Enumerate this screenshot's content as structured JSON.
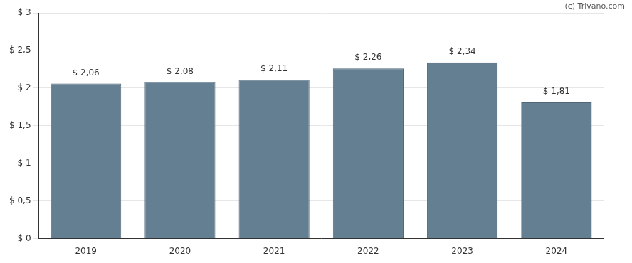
{
  "chart_data": {
    "type": "bar",
    "annotations": [
      "(c) Trivano.com"
    ],
    "categories": [
      "2019",
      "2020",
      "2021",
      "2022",
      "2023",
      "2024"
    ],
    "values": [
      2.06,
      2.08,
      2.11,
      2.26,
      2.34,
      1.81
    ],
    "value_labels": [
      "$ 2,06",
      "$ 2,08",
      "$ 2,11",
      "$ 2,26",
      "$ 2,34",
      "$ 1,81"
    ],
    "data_labels": true,
    "color": "#647f92",
    "ylim": [
      0,
      3
    ],
    "yticks": [
      {
        "value": 0,
        "label": "$ 0"
      },
      {
        "value": 0.5,
        "label": "$ 0,5"
      },
      {
        "value": 1,
        "label": "$ 1"
      },
      {
        "value": 1.5,
        "label": "$ 1,5"
      },
      {
        "value": 2,
        "label": "$ 2"
      },
      {
        "value": 2.5,
        "label": "$ 2,5"
      },
      {
        "value": 3,
        "label": "$ 3"
      }
    ],
    "grid": true
  }
}
